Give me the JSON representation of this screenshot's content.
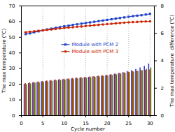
{
  "chart_data": {
    "type": "bar",
    "x": [
      1,
      2,
      3,
      4,
      5,
      6,
      7,
      8,
      9,
      10,
      11,
      12,
      13,
      14,
      15,
      16,
      17,
      18,
      19,
      20,
      21,
      22,
      23,
      24,
      25,
      26,
      27,
      28,
      29,
      30
    ],
    "xlabel": "Cycle number",
    "ylabel": "The max temperature (℃)",
    "y2label": "The max temperature  difference (℃)",
    "xlim": [
      0,
      31
    ],
    "xticks": [
      0,
      5,
      10,
      15,
      20,
      25,
      30
    ],
    "ylim": [
      0,
      70
    ],
    "yticks": [
      0,
      10,
      20,
      30,
      40,
      50,
      60,
      70
    ],
    "y2lim": [
      0,
      8
    ],
    "y2ticks": [
      0,
      2,
      4,
      6,
      8
    ],
    "grid": "x",
    "legend": "center",
    "series": [
      {
        "type": "bar",
        "color": "#3333cc",
        "values": [
          20.0,
          20.5,
          21.0,
          21.3,
          21.6,
          21.9,
          22.2,
          22.5,
          22.8,
          23.0,
          23.3,
          23.5,
          23.8,
          24.0,
          24.3,
          24.5,
          24.8,
          25.0,
          25.3,
          25.6,
          26.0,
          26.5,
          27.0,
          27.5,
          28.2,
          28.8,
          29.5,
          30.5,
          31.5,
          33.0
        ]
      },
      {
        "type": "bar",
        "color": "#cc3300",
        "values": [
          20.5,
          21.0,
          21.3,
          21.6,
          21.9,
          22.2,
          22.5,
          22.8,
          23.0,
          23.3,
          23.5,
          23.8,
          24.0,
          24.3,
          24.5,
          24.8,
          25.0,
          25.3,
          25.5,
          25.8,
          26.2,
          26.6,
          27.0,
          27.4,
          27.8,
          28.1,
          28.4,
          28.7,
          29.0,
          29.2
        ]
      },
      {
        "type": "bar",
        "color": "#557700",
        "values": [
          19.8,
          20.3,
          20.7,
          21.0,
          21.3,
          21.6,
          21.9,
          22.2,
          22.5,
          22.8,
          23.0,
          23.3,
          23.5,
          23.8,
          24.0,
          24.3,
          24.5,
          24.8,
          25.0,
          25.3,
          25.7,
          26.1,
          26.6,
          27.1,
          27.5,
          27.9,
          28.3,
          28.8,
          29.6,
          30.5
        ]
      },
      {
        "type": "line",
        "name": "Module with PCM 2",
        "color": "#2244cc",
        "marker": "square",
        "values": [
          52.0,
          52.5,
          53.2,
          53.8,
          54.4,
          55.0,
          55.5,
          56.0,
          56.5,
          57.0,
          57.4,
          57.9,
          58.3,
          58.7,
          59.1,
          59.5,
          59.9,
          60.3,
          60.7,
          61.1,
          61.5,
          61.9,
          62.3,
          62.7,
          63.1,
          63.5,
          63.8,
          64.1,
          64.5,
          64.9
        ]
      },
      {
        "type": "line",
        "name": "Module with PCM 3",
        "color": "#cc2200",
        "marker": "circle",
        "values": [
          53.2,
          53.5,
          53.8,
          54.1,
          54.4,
          54.7,
          55.0,
          55.3,
          55.6,
          55.9,
          56.2,
          56.4,
          56.7,
          56.9,
          57.2,
          57.4,
          57.7,
          57.9,
          58.2,
          58.4,
          58.6,
          58.9,
          59.1,
          59.3,
          59.5,
          59.7,
          59.8,
          60.0,
          60.1,
          60.2
        ]
      }
    ]
  }
}
